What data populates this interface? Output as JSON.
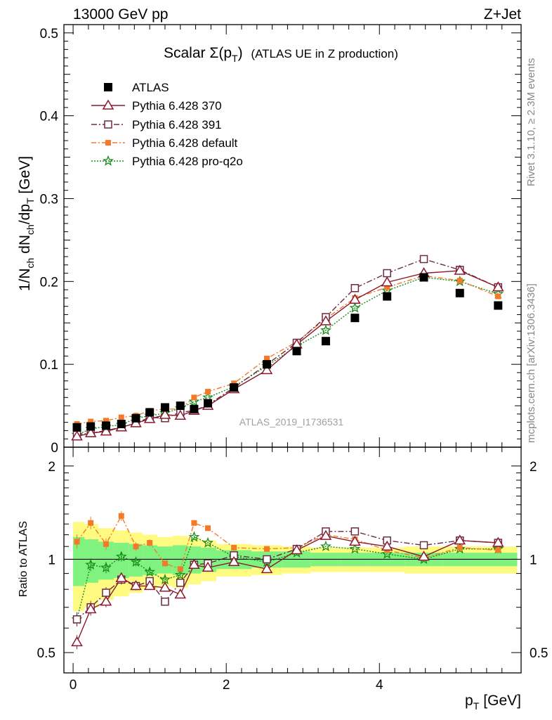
{
  "header": {
    "left": "13000 GeV pp",
    "right": "Z+Jet"
  },
  "chart_data": {
    "type": "line",
    "title_main": "Scalar Σ(p",
    "title_sub": "T",
    "title_close": ")",
    "title_rest": "(ATLAS UE in Z production)",
    "analysis_id": "ATLAS_2019_I1736531",
    "side_labels": {
      "rivet": "Rivet 3.1.10, ≥ 2.3M events",
      "mcplots": "mcplots.cern.ch [arXiv:1306.3436]"
    },
    "xlabel": "p",
    "xlabel_sub": "T",
    "xlabel_unit": "[GeV]",
    "ylabel": "1/N",
    "ylabel_ch1": "ch",
    "ylabel_mid": " dN",
    "ylabel_ch2": "ch",
    "ylabel_dp": "/dp",
    "ylabel_sub": "T",
    "ylabel_unit": " [GeV]",
    "ratio_ylabel": "Ratio to ATLAS",
    "xlim": [
      -0.12,
      5.85
    ],
    "ylim": [
      0,
      0.51
    ],
    "ratio_ylim": [
      0.43,
      2.3
    ],
    "x_ticks": [
      0,
      2,
      4
    ],
    "y_ticks": [
      0,
      0.1,
      0.2,
      0.3,
      0.4,
      0.5
    ],
    "y_tick_labels": [
      "0",
      "0.1",
      "0.2",
      "0.3",
      "0.4",
      "0.5"
    ],
    "ratio_ticks": [
      0.5,
      1,
      2
    ],
    "ratio_tick_labels": [
      "0.5",
      "1",
      "2"
    ],
    "x": [
      0.05,
      0.23,
      0.43,
      0.63,
      0.82,
      1.0,
      1.2,
      1.4,
      1.58,
      1.76,
      2.1,
      2.53,
      2.92,
      3.3,
      3.68,
      4.1,
      4.58,
      5.05,
      5.55
    ],
    "x_edges": [
      0.0,
      0.15,
      0.33,
      0.53,
      0.73,
      0.91,
      1.1,
      1.3,
      1.5,
      1.67,
      1.87,
      2.33,
      2.73,
      3.1,
      3.5,
      3.87,
      4.33,
      4.83,
      5.3,
      5.8
    ],
    "data": {
      "name": "ATLAS",
      "values": [
        0.024,
        0.025,
        0.026,
        0.028,
        0.035,
        0.042,
        0.048,
        0.05,
        0.046,
        0.053,
        0.072,
        0.1,
        0.116,
        0.128,
        0.156,
        0.182,
        0.205,
        0.186,
        0.171
      ],
      "band_inner": [
        0.18,
        0.16,
        0.14,
        0.13,
        0.12,
        0.11,
        0.1,
        0.11,
        0.1,
        0.09,
        0.07,
        0.06,
        0.06,
        0.05,
        0.05,
        0.05,
        0.05,
        0.05,
        0.05
      ],
      "band_outer": [
        0.32,
        0.3,
        0.26,
        0.24,
        0.22,
        0.2,
        0.18,
        0.19,
        0.17,
        0.15,
        0.12,
        0.11,
        0.1,
        0.09,
        0.09,
        0.09,
        0.1,
        0.1,
        0.1
      ]
    },
    "series": [
      {
        "name": "Pythia 6.428 370",
        "color": "#8b1a2e",
        "marker": "triangle",
        "dash": "",
        "values": [
          0.013,
          0.017,
          0.019,
          0.024,
          0.029,
          0.034,
          0.039,
          0.038,
          0.044,
          0.05,
          0.07,
          0.093,
          0.124,
          0.152,
          0.178,
          0.199,
          0.21,
          0.213,
          0.193
        ],
        "ratio": [
          0.54,
          0.69,
          0.73,
          0.87,
          0.82,
          0.82,
          0.81,
          0.77,
          0.96,
          0.94,
          0.98,
          0.93,
          1.07,
          1.19,
          1.14,
          1.1,
          1.02,
          1.15,
          1.13
        ]
      },
      {
        "name": "Pythia 6.428 391",
        "color": "#6b2a45",
        "marker": "square-open",
        "dash": "8,3,2,3",
        "values": [
          0.015,
          0.017,
          0.02,
          0.024,
          0.029,
          0.036,
          0.035,
          0.042,
          0.044,
          0.051,
          0.072,
          0.1,
          0.126,
          0.157,
          0.192,
          0.21,
          0.227,
          0.214,
          0.193
        ],
        "ratio": [
          0.64,
          0.7,
          0.78,
          0.86,
          0.82,
          0.85,
          0.73,
          0.84,
          0.96,
          0.97,
          1.03,
          1.0,
          1.08,
          1.23,
          1.23,
          1.15,
          1.11,
          1.15,
          1.13
        ]
      },
      {
        "name": "Pythia 6.428 default",
        "color": "#f47a2a",
        "marker": "square-filled",
        "dash": "7,3,2,3",
        "values": [
          0.028,
          0.031,
          0.032,
          0.036,
          0.038,
          0.044,
          0.046,
          0.046,
          0.06,
          0.067,
          0.077,
          0.107,
          0.127,
          0.155,
          0.18,
          0.193,
          0.207,
          0.201,
          0.182
        ],
        "ratio": [
          1.14,
          1.31,
          1.12,
          1.38,
          1.1,
          1.13,
          0.97,
          0.93,
          1.31,
          1.26,
          1.09,
          1.08,
          1.09,
          1.2,
          1.16,
          1.07,
          1.01,
          1.09,
          1.07
        ]
      },
      {
        "name": "Pythia 6.428 pro-q2o",
        "color": "#1a8c1a",
        "marker": "star",
        "dash": "2,2",
        "values": [
          0.015,
          0.022,
          0.025,
          0.027,
          0.035,
          0.038,
          0.041,
          0.047,
          0.055,
          0.06,
          0.073,
          0.098,
          0.122,
          0.141,
          0.168,
          0.189,
          0.205,
          0.2,
          0.185
        ],
        "ratio": [
          0.64,
          0.96,
          0.94,
          1.02,
          0.98,
          0.91,
          0.86,
          0.89,
          1.18,
          1.13,
          1.02,
          0.98,
          1.05,
          1.1,
          1.08,
          1.04,
          1.0,
          1.08,
          1.08
        ]
      }
    ],
    "colors": {
      "band_inner": "#7ff27f",
      "band_outer": "#fffa80",
      "data_marker": "#000000"
    }
  }
}
